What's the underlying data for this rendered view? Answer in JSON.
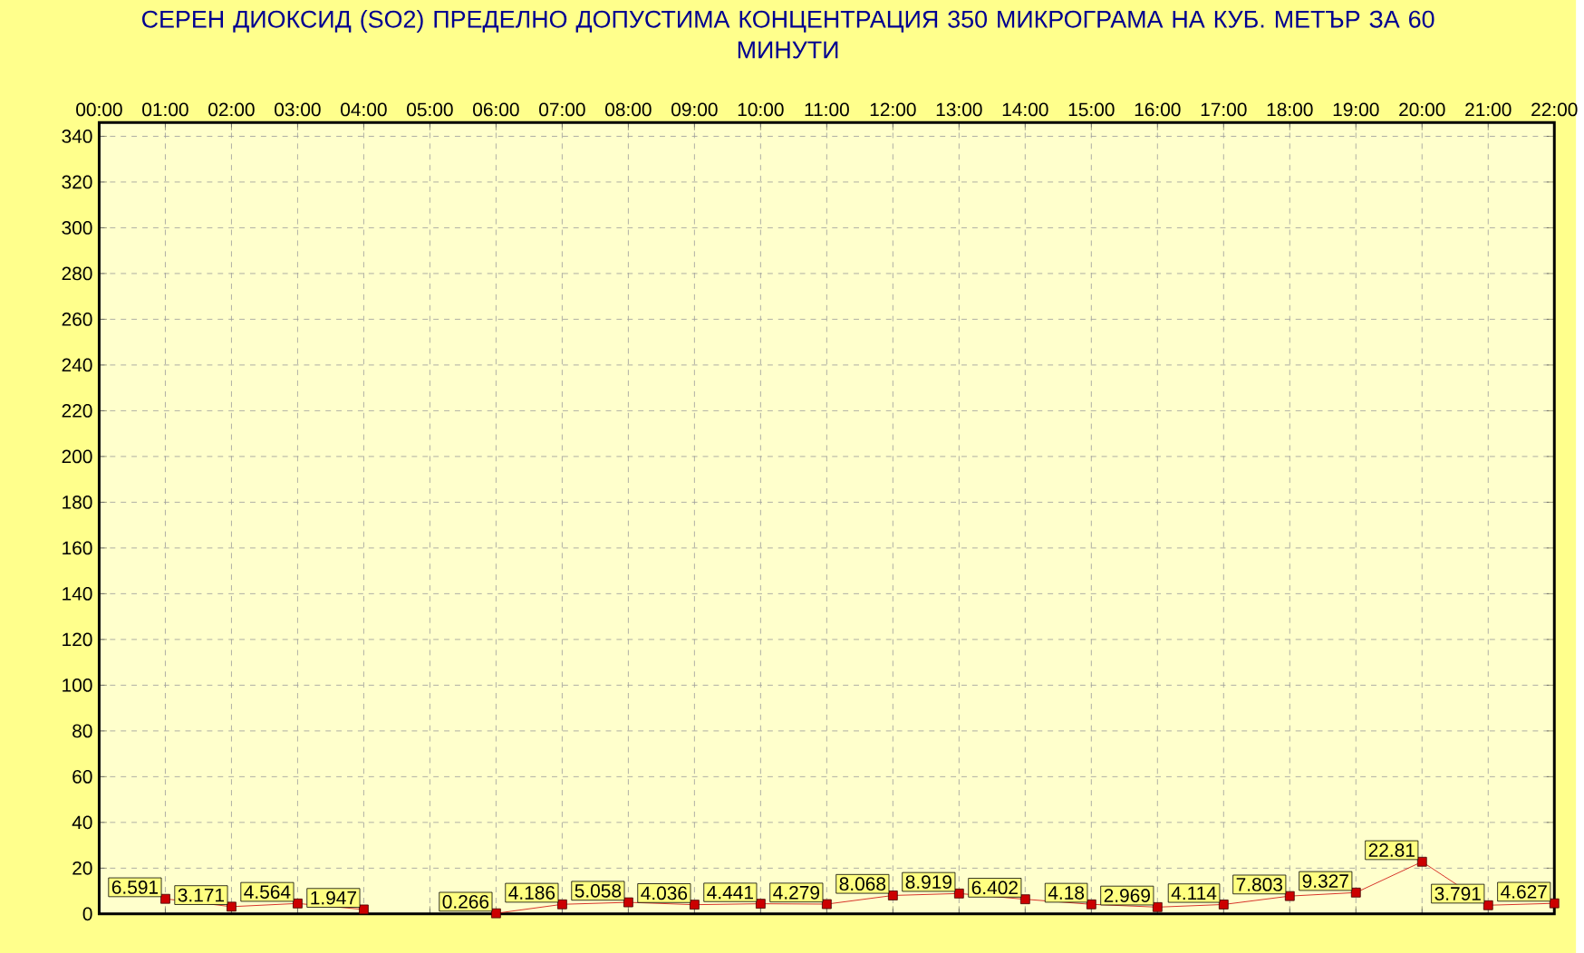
{
  "chart_data": {
    "type": "line",
    "title": "СЕРЕН ДИОКСИД  (SO2)  ПРЕДЕЛНО ДОПУСТИМА КОНЦЕНТРАЦИЯ 350 МИКРОГРАМА  НА КУБ. МЕТЪР ЗА 60 МИНУТИ",
    "categories": [
      "00:00",
      "01:00",
      "02:00",
      "03:00",
      "04:00",
      "05:00",
      "06:00",
      "07:00",
      "08:00",
      "09:00",
      "10:00",
      "11:00",
      "12:00",
      "13:00",
      "14:00",
      "15:00",
      "16:00",
      "17:00",
      "18:00",
      "19:00",
      "20:00",
      "21:00",
      "22:00"
    ],
    "values": [
      null,
      6.591,
      3.171,
      4.564,
      1.947,
      null,
      0.266,
      4.186,
      5.058,
      4.036,
      4.441,
      4.279,
      8.068,
      8.919,
      6.402,
      4.18,
      2.969,
      4.114,
      7.803,
      9.327,
      22.81,
      3.791,
      4.627
    ],
    "color": "#cc0000",
    "ylim": [
      0,
      346
    ],
    "yticks": [
      0,
      20,
      40,
      60,
      80,
      100,
      120,
      140,
      160,
      180,
      200,
      220,
      240,
      260,
      280,
      300,
      320,
      340
    ],
    "grid": true,
    "marker": "square",
    "line_style": "solid",
    "data_labels": true
  }
}
